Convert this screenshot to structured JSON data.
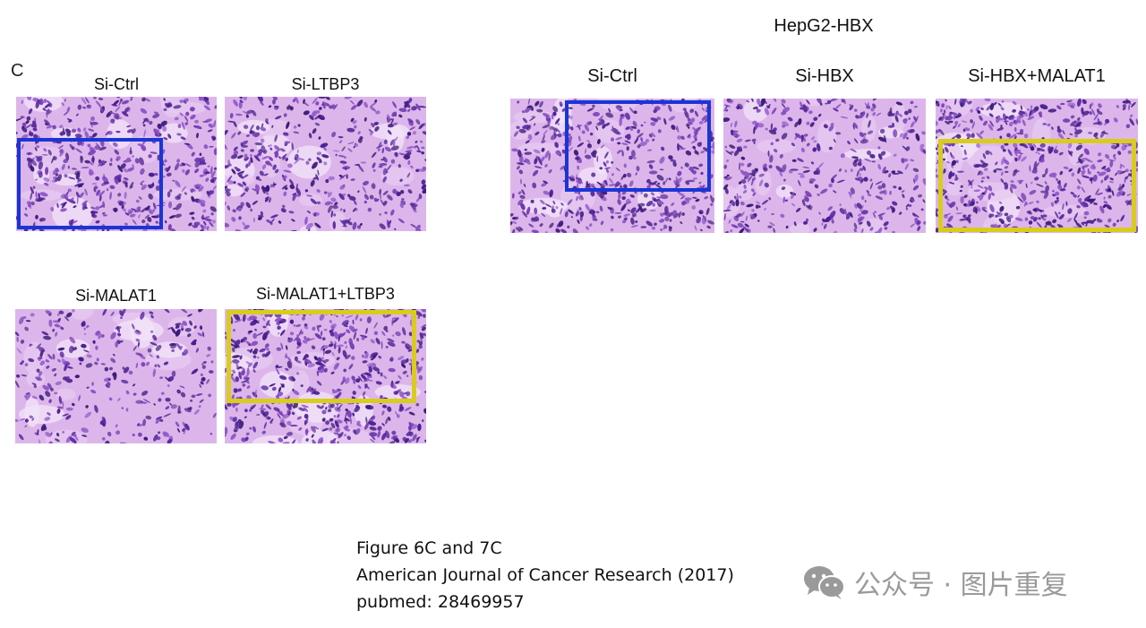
{
  "panel_letter": "C",
  "left_group": {
    "panels": [
      {
        "label": "Si-Ctrl",
        "highlight": "blue"
      },
      {
        "label": "Si-LTBP3",
        "highlight": ""
      },
      {
        "label": "Si-MALAT1",
        "highlight": ""
      },
      {
        "label": "Si-MALAT1+LTBP3",
        "highlight": "yellow"
      }
    ]
  },
  "right_group": {
    "title": "HepG2-HBX",
    "panels": [
      {
        "label": "Si-Ctrl",
        "highlight": "blue"
      },
      {
        "label": "Si-HBX",
        "highlight": ""
      },
      {
        "label": "Si-HBX+MALAT1",
        "highlight": "yellow"
      }
    ]
  },
  "caption": {
    "line1": "Figure 6C and 7C",
    "line2": "American Journal of Cancer Research (2017)",
    "line3": "pubmed: 28469957"
  },
  "watermark": {
    "icon": "wechat-icon",
    "text": "公众号 · 图片重复"
  },
  "colors": {
    "highlight_blue": "#1a35d6",
    "highlight_yellow": "#d8cc1c",
    "stain_dark": "#4a1f8f",
    "stain_mid": "#7b3fb8",
    "background_pink": "#dcb6ea"
  }
}
